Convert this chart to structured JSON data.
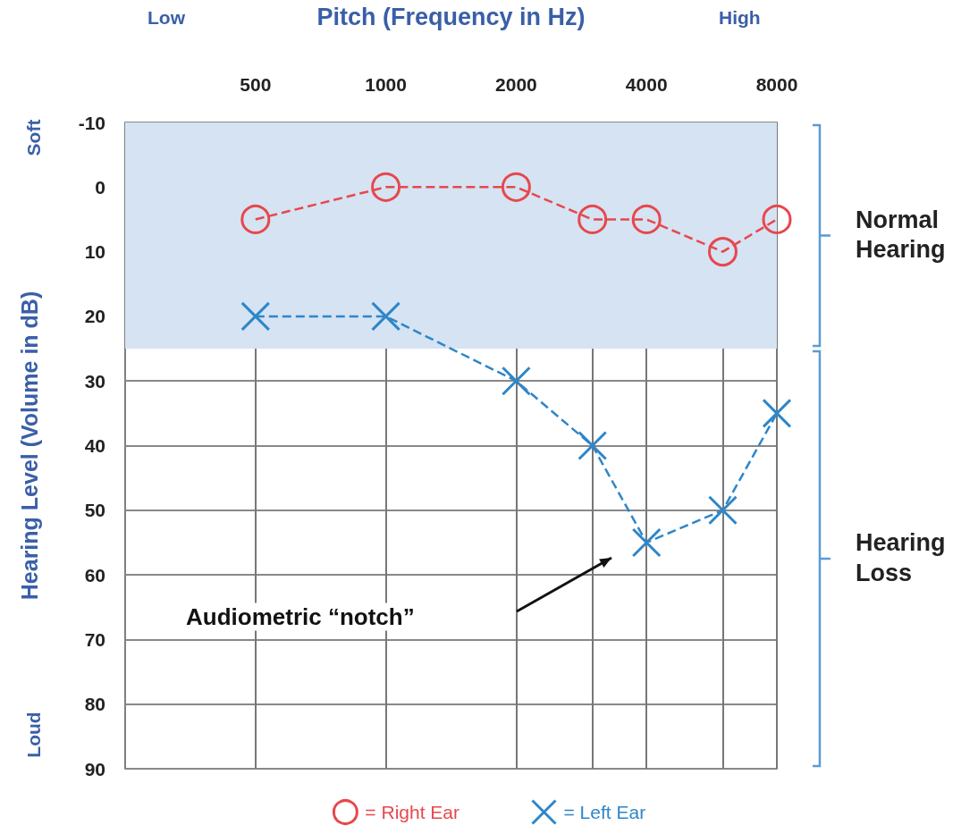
{
  "chart_data": {
    "type": "line",
    "xlabel": "Pitch (Frequency in Hz)",
    "ylabel": "Hearing Level (Volume in dB)",
    "x": [
      500,
      1000,
      2000,
      3000,
      4000,
      6000,
      8000
    ],
    "series": [
      {
        "name": "= Right Ear",
        "color": "#e8474c",
        "marker": "circle",
        "values": [
          5,
          0,
          0,
          5,
          5,
          10,
          5
        ]
      },
      {
        "name": "= Left Ear",
        "color": "#2e86c8",
        "marker": "cross",
        "values": [
          20,
          20,
          30,
          40,
          55,
          50,
          35
        ]
      }
    ],
    "log": "x",
    "xlim": [
      250,
      8000
    ],
    "xticks": [
      500,
      1000,
      2000,
      {
        "value": 3000,
        "label": null
      },
      4000,
      {
        "value": 6000,
        "label": null
      },
      8000
    ],
    "ylim": [
      90,
      -10
    ],
    "yticks": [
      -10,
      0,
      10,
      20,
      30,
      40,
      50,
      60,
      70,
      80,
      90
    ],
    "bands": [
      {
        "axis": "y",
        "from": -10,
        "to": 25,
        "color": "#d5e3f3"
      }
    ],
    "annotations": [
      "Low",
      "High",
      "Soft",
      "Loud",
      "Normal Hearing",
      "Hearing Loss",
      "Audiometric “notch”"
    ],
    "line_style": "dashed",
    "grid": true,
    "legend": "bottom"
  }
}
